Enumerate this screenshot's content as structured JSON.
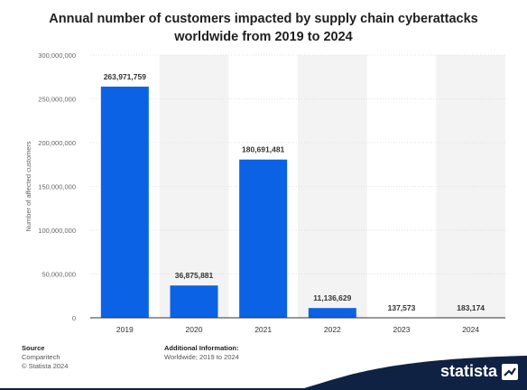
{
  "chart_data": {
    "type": "bar",
    "title": "Annual number of customers impacted by supply chain cyberattacks worldwide from 2019 to 2024",
    "ylabel": "Number of affected customers",
    "xlabel": "",
    "categories": [
      "2019",
      "2020",
      "2021",
      "2022",
      "2023",
      "2024"
    ],
    "values": [
      263971759,
      36875881,
      180691481,
      11136629,
      137573,
      183174
    ],
    "value_labels": [
      "263,971,759",
      "36,875,881",
      "180,691,481",
      "11,136,629",
      "137,573",
      "183,174"
    ],
    "ylim": [
      0,
      300000000
    ],
    "yticks": [
      0,
      50000000,
      100000000,
      150000000,
      200000000,
      250000000,
      300000000
    ],
    "ytick_labels": [
      "0",
      "50,000,000",
      "100,000,000",
      "150,000,000",
      "200,000,000",
      "250,000,000",
      "300,000,000"
    ],
    "bar_color": "#0b62e5",
    "grid": true
  },
  "title_lines": [
    "Annual number of customers impacted by supply chain cyberattacks",
    "worldwide from 2019 to 2024"
  ],
  "footer": {
    "source_heading": "Source",
    "source_lines": [
      "Comparitech",
      "© Statista 2024"
    ],
    "info_heading": "Additional Information:",
    "info_text": "Worldwide; 2019 to 2024"
  },
  "brand": {
    "name": "statista",
    "color": "#0f2244",
    "icon": "statista-logo-icon"
  }
}
